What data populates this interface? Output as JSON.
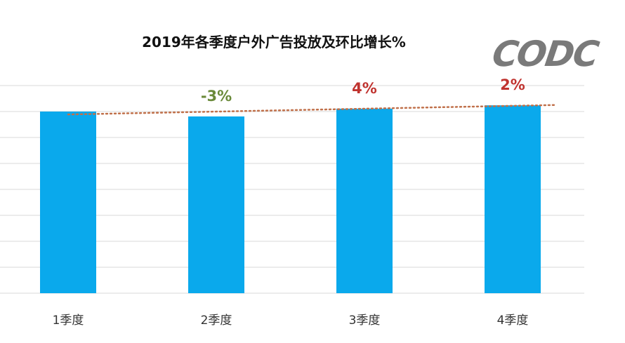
{
  "chart_data": {
    "type": "bar",
    "title": "2019年各季度户外广告投放及环比增长%",
    "categories": [
      "1季度",
      "2季度",
      "3季度",
      "4季度"
    ],
    "values": [
      7.0,
      6.81,
      7.11,
      7.24
    ],
    "data_labels": [
      "",
      "-3%",
      "4%",
      "2%"
    ],
    "data_label_colors": [
      "#000000",
      "#6a8a3a",
      "#c0332f",
      "#c0332f"
    ],
    "ylim": [
      0,
      8
    ],
    "grid": true,
    "y_tick_labels_shown": false,
    "trendline": "dotted linear",
    "bar_color": "#0aa9ec",
    "trendline_color": "#c0704a",
    "xlabel": "",
    "ylabel": ""
  },
  "logo": {
    "text": "CODC",
    "color": "#7a7a7a"
  }
}
